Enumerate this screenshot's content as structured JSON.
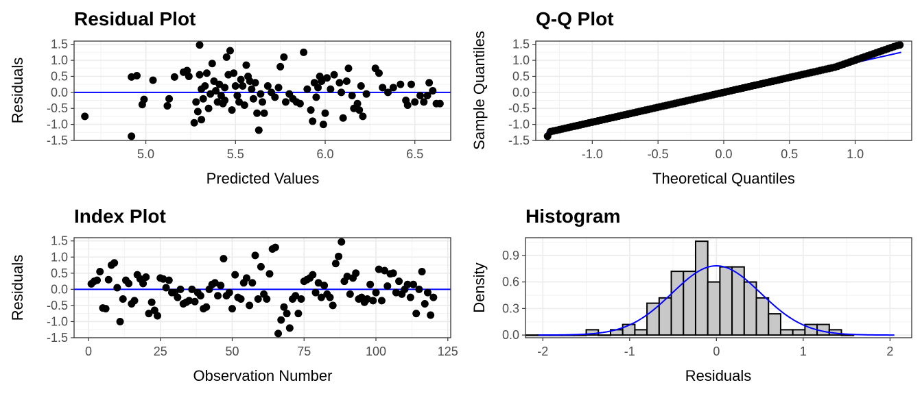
{
  "chart_data": [
    {
      "type": "scatter",
      "title": "Residual Plot",
      "xlabel": "Predicted Values",
      "ylabel": "Residuals",
      "xlim": [
        4.6,
        6.7
      ],
      "ylim": [
        -1.5,
        1.6
      ],
      "xticks": [
        5.0,
        5.5,
        6.0,
        6.5
      ],
      "xtick_labels": [
        "5.0",
        "5.5",
        "6.0",
        "6.5"
      ],
      "yticks": [
        -1.5,
        -1.0,
        -0.5,
        0.0,
        0.5,
        1.0,
        1.5
      ],
      "ytick_labels": [
        "-1.5",
        "-1.0",
        "-0.5",
        "0.0",
        "0.5",
        "1.0",
        "1.5"
      ],
      "reference_line": {
        "y": 0,
        "color": "#0000ff"
      },
      "grid": true,
      "points": [
        [
          4.66,
          -0.75
        ],
        [
          4.92,
          -1.37
        ],
        [
          4.92,
          0.48
        ],
        [
          4.95,
          0.52
        ],
        [
          4.98,
          -0.38
        ],
        [
          4.99,
          -0.22
        ],
        [
          5.04,
          0.38
        ],
        [
          5.12,
          -0.42
        ],
        [
          5.13,
          -0.2
        ],
        [
          5.16,
          0.48
        ],
        [
          5.21,
          0.63
        ],
        [
          5.23,
          0.68
        ],
        [
          5.24,
          0.5
        ],
        [
          5.27,
          -0.95
        ],
        [
          5.28,
          -0.3
        ],
        [
          5.29,
          -0.6
        ],
        [
          5.3,
          1.48
        ],
        [
          5.3,
          0.55
        ],
        [
          5.31,
          -0.85
        ],
        [
          5.31,
          0.1
        ],
        [
          5.32,
          -0.2
        ],
        [
          5.33,
          0.2
        ],
        [
          5.34,
          0.6
        ],
        [
          5.35,
          -0.5
        ],
        [
          5.36,
          -0.05
        ],
        [
          5.37,
          0.9
        ],
        [
          5.38,
          0.35
        ],
        [
          5.39,
          0.05
        ],
        [
          5.4,
          -0.3
        ],
        [
          5.41,
          0.25
        ],
        [
          5.42,
          -0.1
        ],
        [
          5.43,
          -0.35
        ],
        [
          5.44,
          -0.25
        ],
        [
          5.44,
          0.15
        ],
        [
          5.45,
          1.1
        ],
        [
          5.46,
          0.55
        ],
        [
          5.47,
          1.3
        ],
        [
          5.48,
          -0.55
        ],
        [
          5.49,
          0.6
        ],
        [
          5.5,
          0.2
        ],
        [
          5.51,
          -0.1
        ],
        [
          5.52,
          -0.3
        ],
        [
          5.53,
          0.4
        ],
        [
          5.54,
          0.2
        ],
        [
          5.55,
          -0.4
        ],
        [
          5.56,
          0.85
        ],
        [
          5.57,
          0.5
        ],
        [
          5.58,
          0.35
        ],
        [
          5.59,
          0.1
        ],
        [
          5.6,
          -0.2
        ],
        [
          5.61,
          0.3
        ],
        [
          5.62,
          -0.65
        ],
        [
          5.63,
          -1.18
        ],
        [
          5.64,
          -0.05
        ],
        [
          5.65,
          -0.3
        ],
        [
          5.66,
          -0.65
        ],
        [
          5.68,
          0.2
        ],
        [
          5.7,
          0.0
        ],
        [
          5.72,
          -0.15
        ],
        [
          5.74,
          0.15
        ],
        [
          5.75,
          0.8
        ],
        [
          5.77,
          1.1
        ],
        [
          5.78,
          -0.3
        ],
        [
          5.8,
          -0.05
        ],
        [
          5.82,
          -0.2
        ],
        [
          5.84,
          -0.3
        ],
        [
          5.86,
          -0.35
        ],
        [
          5.88,
          1.25
        ],
        [
          5.9,
          0.1
        ],
        [
          5.92,
          -0.55
        ],
        [
          5.93,
          -0.9
        ],
        [
          5.94,
          0.3
        ],
        [
          5.95,
          -0.15
        ],
        [
          5.96,
          0.15
        ],
        [
          5.97,
          0.5
        ],
        [
          5.98,
          0.35
        ],
        [
          5.99,
          -1.0
        ],
        [
          6.0,
          -0.65
        ],
        [
          6.01,
          0.45
        ],
        [
          6.03,
          0.1
        ],
        [
          6.05,
          0.55
        ],
        [
          6.08,
          0.3
        ],
        [
          6.09,
          0.0
        ],
        [
          6.1,
          -0.8
        ],
        [
          6.12,
          0.35
        ],
        [
          6.13,
          0.75
        ],
        [
          6.15,
          -0.1
        ],
        [
          6.16,
          -0.5
        ],
        [
          6.18,
          -0.35
        ],
        [
          6.19,
          -0.55
        ],
        [
          6.2,
          0.2
        ],
        [
          6.21,
          -0.75
        ],
        [
          6.23,
          -0.05
        ],
        [
          6.28,
          0.75
        ],
        [
          6.3,
          0.6
        ],
        [
          6.32,
          0.15
        ],
        [
          6.35,
          0.0
        ],
        [
          6.38,
          0.15
        ],
        [
          6.42,
          0.25
        ],
        [
          6.45,
          -0.25
        ],
        [
          6.46,
          -0.4
        ],
        [
          6.48,
          0.25
        ],
        [
          6.5,
          -0.3
        ],
        [
          6.53,
          -0.1
        ],
        [
          6.55,
          -0.3
        ],
        [
          6.57,
          -0.1
        ],
        [
          6.58,
          0.3
        ],
        [
          6.6,
          0.05
        ],
        [
          6.62,
          -0.35
        ],
        [
          6.64,
          -0.35
        ]
      ]
    },
    {
      "type": "scatter",
      "title": "Q-Q Plot",
      "xlabel": "Theoretical Quantiles",
      "ylabel": "Sample Quantiles",
      "xlim": [
        -1.43,
        1.43
      ],
      "ylim": [
        -1.5,
        1.6
      ],
      "xticks": [
        -1.0,
        -0.5,
        0.0,
        0.5,
        1.0
      ],
      "xtick_labels": [
        "-1.0",
        "-0.5",
        "0.0",
        "0.5",
        "1.0"
      ],
      "yticks": [
        -1.5,
        -1.0,
        -0.5,
        0.0,
        0.5,
        1.0,
        1.5
      ],
      "ytick_labels": [
        "-1.5",
        "-1.0",
        "-0.5",
        "0.0",
        "0.5",
        "1.0",
        "1.5"
      ],
      "reference_line": {
        "x": [
          -1.35,
          1.35
        ],
        "y": [
          -1.25,
          1.25
        ],
        "color": "#0000ff"
      },
      "grid": true,
      "n_points": 120,
      "quantile_range": [
        -1.34,
        1.34
      ],
      "extremes": {
        "lower": -1.37,
        "upper": 1.48
      }
    },
    {
      "type": "scatter",
      "title": "Index Plot",
      "xlabel": "Observation Number",
      "ylabel": "Residuals",
      "xlim": [
        -5,
        126
      ],
      "ylim": [
        -1.5,
        1.6
      ],
      "xticks": [
        0,
        25,
        50,
        75,
        100,
        125
      ],
      "xtick_labels": [
        "0",
        "25",
        "50",
        "75",
        "100",
        "125"
      ],
      "yticks": [
        -1.5,
        -1.0,
        -0.5,
        0.0,
        0.5,
        1.0,
        1.5
      ],
      "ytick_labels": [
        "-1.5",
        "-1.0",
        "-0.5",
        "0.0",
        "0.5",
        "1.0",
        "1.5"
      ],
      "reference_line": {
        "y": 0,
        "color": "#0000ff"
      },
      "grid": true,
      "values": [
        0.17,
        0.25,
        0.28,
        0.55,
        -0.58,
        -0.6,
        0.3,
        0.75,
        0.82,
        0.05,
        -1.0,
        -0.3,
        0.28,
        0.18,
        -0.45,
        -0.35,
        0.45,
        0.32,
        0.18,
        0.38,
        -0.75,
        -0.4,
        -0.65,
        -0.82,
        0.35,
        0.32,
        0.05,
        0.28,
        -0.1,
        -0.1,
        -0.25,
        0.0,
        -0.45,
        -0.4,
        -0.35,
        0.0,
        -0.38,
        -0.1,
        -0.2,
        -0.6,
        -0.55,
        0.0,
        0.15,
        0.2,
        -0.2,
        0.12,
        0.95,
        -0.2,
        -0.1,
        -0.6,
        0.45,
        -0.25,
        -0.3,
        0.2,
        0.35,
        -0.5,
        0.2,
        1.05,
        -0.3,
        0.7,
        -0.15,
        -0.3,
        0.48,
        1.25,
        1.3,
        -1.37,
        -0.95,
        -0.55,
        -0.75,
        -1.2,
        -0.3,
        -0.2,
        -0.75,
        -0.3,
        0.25,
        0.3,
        0.35,
        0.45,
        -0.1,
        0.2,
        -0.25,
        0.12,
        -0.15,
        -0.25,
        -0.5,
        0.8,
        1.02,
        1.47,
        0.25,
        0.4,
        -0.15,
        0.35,
        0.5,
        -0.3,
        -0.25,
        -0.4,
        -0.3,
        0.15,
        -0.35,
        -0.1,
        0.62,
        -0.35,
        0.58,
        0.1,
        0.48,
        0.5,
        -0.1,
        0.25,
        -0.15,
        0.0,
        0.15,
        -0.25,
        0.15,
        -0.75,
        0.0,
        0.55,
        -0.45,
        -0.1,
        -0.8,
        -0.25
      ]
    },
    {
      "type": "bar",
      "subtype": "histogram",
      "title": "Histogram",
      "xlabel": "Residuals",
      "ylabel": "Density",
      "xlim": [
        -2.2,
        2.25
      ],
      "ylim": [
        -0.03,
        1.1
      ],
      "xticks": [
        -2,
        -1,
        0,
        1,
        2
      ],
      "xtick_labels": [
        "-2",
        "-1",
        "0",
        "1",
        "2"
      ],
      "yticks": [
        0.0,
        0.3,
        0.6,
        0.9
      ],
      "ytick_labels": [
        "0.0",
        "0.3",
        "0.6",
        "0.9"
      ],
      "grid": true,
      "bin_edges": [
        -2.2,
        -2.06,
        -1.92,
        -1.78,
        -1.64,
        -1.5,
        -1.36,
        -1.22,
        -1.08,
        -0.94,
        -0.8,
        -0.66,
        -0.52,
        -0.38,
        -0.24,
        -0.1,
        0.04,
        0.18,
        0.32,
        0.46,
        0.6,
        0.74,
        0.88,
        1.02,
        1.16,
        1.3,
        1.44,
        1.58
      ],
      "densities": [
        0.0,
        0.0,
        0.0,
        0.0,
        0.0,
        0.06,
        0.0,
        0.06,
        0.12,
        0.06,
        0.36,
        0.42,
        0.72,
        0.72,
        1.06,
        0.6,
        0.77,
        0.77,
        0.6,
        0.42,
        0.24,
        0.06,
        0.06,
        0.12,
        0.12,
        0.06,
        0.0
      ],
      "bar_fill": "#c8c8c8",
      "bar_edge": "#000000",
      "density_curve": {
        "type": "normal",
        "mean": 0,
        "sd": 0.51,
        "x_range": [
          -2.05,
          2.05
        ],
        "color": "#0000ff"
      }
    }
  ]
}
